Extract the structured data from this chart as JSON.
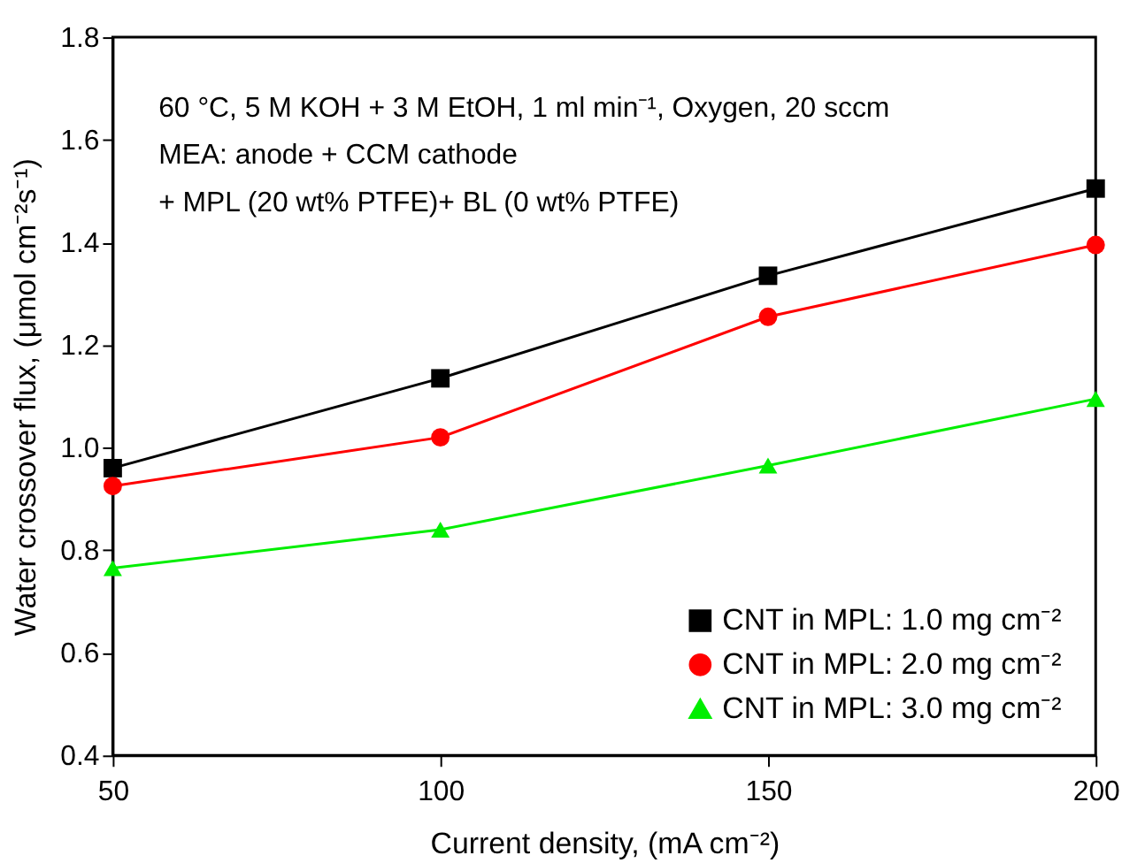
{
  "chart_data": {
    "type": "line",
    "xlabel": "Current density, (mA cm⁻²)",
    "ylabel": "Water crossover flux, (μmol cm⁻²s⁻¹)",
    "x": [
      50,
      100,
      150,
      200
    ],
    "series": [
      {
        "name": "CNT in MPL: 1.0 mg cm⁻²",
        "color": "#000000",
        "marker": "square",
        "values": [
          0.96,
          1.135,
          1.335,
          1.505
        ]
      },
      {
        "name": "CNT in MPL: 2.0 mg cm⁻²",
        "color": "#ff0000",
        "marker": "circle",
        "values": [
          0.925,
          1.02,
          1.255,
          1.395
        ]
      },
      {
        "name": "CNT in MPL: 3.0 mg cm⁻²",
        "color": "#00ee00",
        "marker": "triangle",
        "values": [
          0.765,
          0.84,
          0.965,
          1.095
        ]
      }
    ],
    "xlim": [
      50,
      200
    ],
    "xticks": [
      50,
      100,
      150,
      200
    ],
    "ylim": [
      0.4,
      1.8
    ],
    "yticks": [
      0.4,
      0.6,
      0.8,
      {
        "value": 1,
        "label": "1.0"
      },
      1.2,
      1.4,
      1.6,
      1.8
    ],
    "annotations": [
      "60 °C, 5 M KOH + 3 M EtOH, 1 ml min⁻¹, Oxygen, 20 sccm",
      "MEA: anode + CCM cathode",
      "+ MPL (20 wt% PTFE)+ BL (0 wt% PTFE)"
    ],
    "legend": "bottom right",
    "grid": false,
    "line_style": "solid"
  }
}
